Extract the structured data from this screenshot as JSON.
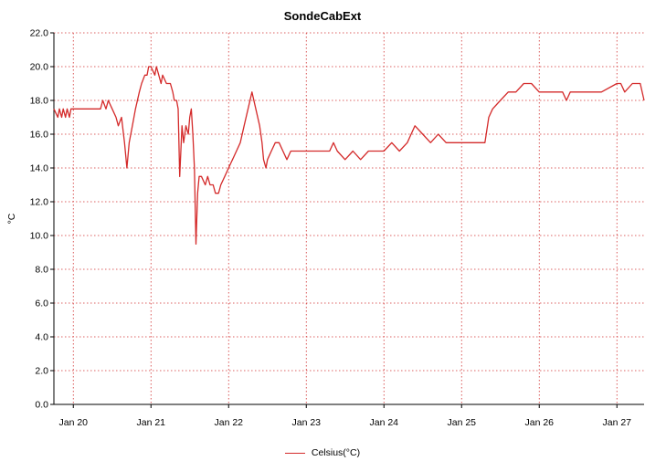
{
  "chart_data": {
    "type": "line",
    "title": "SondeCabExt",
    "xlabel": "",
    "ylabel": "°C",
    "ylim": [
      0,
      22
    ],
    "yticks": [
      "0.0",
      "2.0",
      "4.0",
      "6.0",
      "8.0",
      "10.0",
      "12.0",
      "14.0",
      "16.0",
      "18.0",
      "20.0",
      "22.0"
    ],
    "xlim": [
      19.75,
      27.35
    ],
    "xticks": [
      {
        "day": 20,
        "label": "Jan 20"
      },
      {
        "day": 21,
        "label": "Jan 21"
      },
      {
        "day": 22,
        "label": "Jan 22"
      },
      {
        "day": 23,
        "label": "Jan 23"
      },
      {
        "day": 24,
        "label": "Jan 24"
      },
      {
        "day": 25,
        "label": "Jan 25"
      },
      {
        "day": 26,
        "label": "Jan 26"
      },
      {
        "day": 27,
        "label": "Jan 27"
      }
    ],
    "grid": true,
    "legend_position": "bottom",
    "series": [
      {
        "name": "Celsius(°C)",
        "color": "#d42a2a",
        "x": [
          19.75,
          19.8,
          19.82,
          19.85,
          19.87,
          19.9,
          19.92,
          19.95,
          19.97,
          20.0,
          20.1,
          20.2,
          20.35,
          20.38,
          20.42,
          20.45,
          20.5,
          20.55,
          20.58,
          20.62,
          20.66,
          20.69,
          20.72,
          20.76,
          20.8,
          20.85,
          20.88,
          20.92,
          20.95,
          20.97,
          21.0,
          21.05,
          21.07,
          21.1,
          21.13,
          21.15,
          21.2,
          21.25,
          21.28,
          21.3,
          21.33,
          21.35,
          21.37,
          21.4,
          21.42,
          21.45,
          21.48,
          21.5,
          21.52,
          21.54,
          21.56,
          21.58,
          21.6,
          21.62,
          21.65,
          21.7,
          21.73,
          21.76,
          21.8,
          21.83,
          21.87,
          21.9,
          21.95,
          22.0,
          22.05,
          22.1,
          22.15,
          22.2,
          22.25,
          22.3,
          22.35,
          22.4,
          22.43,
          22.45,
          22.48,
          22.5,
          22.55,
          22.6,
          22.65,
          22.7,
          22.75,
          22.8,
          22.9,
          23.0,
          23.2,
          23.3,
          23.35,
          23.4,
          23.5,
          23.6,
          23.7,
          23.8,
          23.9,
          24.0,
          24.1,
          24.2,
          24.3,
          24.35,
          24.4,
          24.5,
          24.6,
          24.7,
          24.8,
          24.9,
          25.0,
          25.1,
          25.2,
          25.3,
          25.35,
          25.4,
          25.5,
          25.6,
          25.7,
          25.8,
          25.9,
          26.0,
          26.2,
          26.3,
          26.35,
          26.4,
          26.6,
          26.8,
          27.0,
          27.05,
          27.1,
          27.2,
          27.3,
          27.35
        ],
        "y": [
          17.5,
          17.0,
          17.5,
          17.0,
          17.5,
          17.0,
          17.5,
          17.0,
          17.5,
          17.5,
          17.5,
          17.5,
          17.5,
          18.0,
          17.5,
          18.0,
          17.5,
          17.0,
          16.5,
          17.0,
          15.5,
          14.0,
          15.5,
          16.5,
          17.5,
          18.5,
          19.0,
          19.5,
          19.5,
          20.0,
          20.0,
          19.5,
          20.0,
          19.5,
          19.0,
          19.5,
          19.0,
          19.0,
          18.5,
          18.0,
          18.0,
          17.5,
          13.5,
          16.5,
          15.5,
          16.5,
          16.0,
          17.0,
          17.5,
          16.0,
          14.0,
          9.5,
          12.5,
          13.5,
          13.5,
          13.0,
          13.5,
          13.0,
          13.0,
          12.5,
          12.5,
          13.0,
          13.5,
          14.0,
          14.5,
          15.0,
          15.5,
          16.5,
          17.5,
          18.5,
          17.5,
          16.5,
          15.5,
          14.5,
          14.0,
          14.5,
          15.0,
          15.5,
          15.5,
          15.0,
          14.5,
          15.0,
          15.0,
          15.0,
          15.0,
          15.0,
          15.5,
          15.0,
          14.5,
          15.0,
          14.5,
          15.0,
          15.0,
          15.0,
          15.5,
          15.0,
          15.5,
          16.0,
          16.5,
          16.0,
          15.5,
          16.0,
          15.5,
          15.5,
          15.5,
          15.5,
          15.5,
          15.5,
          17.0,
          17.5,
          18.0,
          18.5,
          18.5,
          19.0,
          19.0,
          18.5,
          18.5,
          18.5,
          18.0,
          18.5,
          18.5,
          18.5,
          19.0,
          19.0,
          18.5,
          19.0,
          19.0,
          18.0
        ]
      }
    ]
  }
}
